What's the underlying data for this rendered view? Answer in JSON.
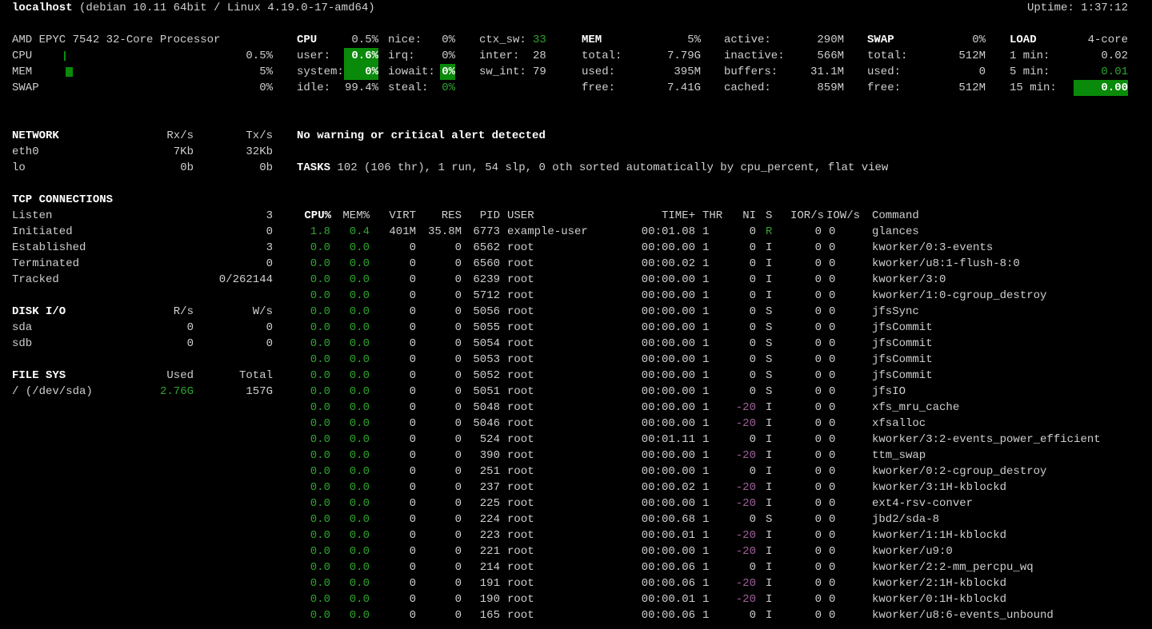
{
  "header": {
    "host": "localhost",
    "system": " (debian 10.11 64bit / Linux 4.19.0-17-amd64)",
    "uptime": "Uptime: 1:37:12"
  },
  "quicklook": {
    "cpu_name": "AMD EPYC 7542 32-Core Processor",
    "rows": [
      {
        "label": "CPU",
        "value": "0.5%",
        "percent": 0.5
      },
      {
        "label": "MEM",
        "value": "5%",
        "percent": 5
      },
      {
        "label": "SWAP",
        "value": "0%",
        "percent": 0
      }
    ]
  },
  "cpu": {
    "title": "CPU",
    "total": "0.5%",
    "user_label": "user:",
    "user": "0.6%",
    "system_label": "system:",
    "system": "0%",
    "idle_label": "idle:",
    "idle": "99.4%",
    "nice_label": "nice:",
    "nice": "0%",
    "irq_label": "irq:",
    "irq": "0%",
    "iowait_label": "iowait:",
    "iowait": "0%",
    "steal_label": "steal:",
    "steal": "0%",
    "ctx_sw_label": "ctx_sw:",
    "ctx_sw": "33",
    "inter_label": "inter:",
    "inter": "28",
    "sw_int_label": "sw_int:",
    "sw_int": "79"
  },
  "mem": {
    "title": "MEM",
    "percent": "5%",
    "total_label": "total:",
    "total": "7.79G",
    "used_label": "used:",
    "used": "395M",
    "free_label": "free:",
    "free": "7.41G",
    "active_label": "active:",
    "active": "290M",
    "inactive_label": "inactive:",
    "inactive": "566M",
    "buffers_label": "buffers:",
    "buffers": "31.1M",
    "cached_label": "cached:",
    "cached": "859M"
  },
  "swap": {
    "title": "SWAP",
    "percent": "0%",
    "total_label": "total:",
    "total": "512M",
    "used_label": "used:",
    "used": "0",
    "free_label": "free:",
    "free": "512M"
  },
  "load": {
    "title": "LOAD",
    "cores": "4-core",
    "m1_label": "1 min:",
    "m1": "0.02",
    "m5_label": "5 min:",
    "m5": "0.01",
    "m15_label": "15 min:",
    "m15": "0.00"
  },
  "network": {
    "title": "NETWORK",
    "rx": "Rx/s",
    "tx": "Tx/s",
    "rows": [
      {
        "name": "eth0",
        "rx": "7Kb",
        "tx": "32Kb"
      },
      {
        "name": "lo",
        "rx": "0b",
        "tx": "0b"
      }
    ]
  },
  "tcp": {
    "title": "TCP CONNECTIONS",
    "rows": [
      {
        "label": "Listen",
        "value": "3"
      },
      {
        "label": "Initiated",
        "value": "0"
      },
      {
        "label": "Established",
        "value": "3"
      },
      {
        "label": "Terminated",
        "value": "0"
      },
      {
        "label": "Tracked",
        "value": "0/262144"
      }
    ]
  },
  "disk": {
    "title": "DISK I/O",
    "r": "R/s",
    "w": "W/s",
    "rows": [
      {
        "name": "sda",
        "r": "0",
        "w": "0"
      },
      {
        "name": "sdb",
        "r": "0",
        "w": "0"
      }
    ]
  },
  "fs": {
    "title": "FILE SYS",
    "used": "Used",
    "total": "Total",
    "rows": [
      {
        "name": "/ (/dev/sda)",
        "used": "2.76G",
        "total": "157G"
      }
    ]
  },
  "alert": "No warning or critical alert detected",
  "tasks": {
    "label": "TASKS",
    "text": " 102 (106 thr), 1 run, 54 slp, 0 oth sorted automatically by cpu_percent, flat view"
  },
  "processes": {
    "columns": [
      "CPU%",
      "MEM%",
      "VIRT",
      "RES",
      "PID",
      "USER",
      "TIME+",
      "THR",
      "NI",
      "S",
      "IOR/s",
      "IOW/s",
      "Command"
    ],
    "rows": [
      [
        "1.8",
        "0.4",
        "401M",
        "35.8M",
        "6773",
        "example-user",
        "00:01.08",
        "1",
        "0",
        "R",
        "0",
        "0",
        "glances"
      ],
      [
        "0.0",
        "0.0",
        "0",
        "0",
        "6562",
        "root",
        "00:00.00",
        "1",
        "0",
        "I",
        "0",
        "0",
        "kworker/0:3-events"
      ],
      [
        "0.0",
        "0.0",
        "0",
        "0",
        "6560",
        "root",
        "00:00.02",
        "1",
        "0",
        "I",
        "0",
        "0",
        "kworker/u8:1-flush-8:0"
      ],
      [
        "0.0",
        "0.0",
        "0",
        "0",
        "6239",
        "root",
        "00:00.00",
        "1",
        "0",
        "I",
        "0",
        "0",
        "kworker/3:0"
      ],
      [
        "0.0",
        "0.0",
        "0",
        "0",
        "5712",
        "root",
        "00:00.00",
        "1",
        "0",
        "I",
        "0",
        "0",
        "kworker/1:0-cgroup_destroy"
      ],
      [
        "0.0",
        "0.0",
        "0",
        "0",
        "5056",
        "root",
        "00:00.00",
        "1",
        "0",
        "S",
        "0",
        "0",
        "jfsSync"
      ],
      [
        "0.0",
        "0.0",
        "0",
        "0",
        "5055",
        "root",
        "00:00.00",
        "1",
        "0",
        "S",
        "0",
        "0",
        "jfsCommit"
      ],
      [
        "0.0",
        "0.0",
        "0",
        "0",
        "5054",
        "root",
        "00:00.00",
        "1",
        "0",
        "S",
        "0",
        "0",
        "jfsCommit"
      ],
      [
        "0.0",
        "0.0",
        "0",
        "0",
        "5053",
        "root",
        "00:00.00",
        "1",
        "0",
        "S",
        "0",
        "0",
        "jfsCommit"
      ],
      [
        "0.0",
        "0.0",
        "0",
        "0",
        "5052",
        "root",
        "00:00.00",
        "1",
        "0",
        "S",
        "0",
        "0",
        "jfsCommit"
      ],
      [
        "0.0",
        "0.0",
        "0",
        "0",
        "5051",
        "root",
        "00:00.00",
        "1",
        "0",
        "S",
        "0",
        "0",
        "jfsIO"
      ],
      [
        "0.0",
        "0.0",
        "0",
        "0",
        "5048",
        "root",
        "00:00.00",
        "1",
        "-20",
        "I",
        "0",
        "0",
        "xfs_mru_cache"
      ],
      [
        "0.0",
        "0.0",
        "0",
        "0",
        "5046",
        "root",
        "00:00.00",
        "1",
        "-20",
        "I",
        "0",
        "0",
        "xfsalloc"
      ],
      [
        "0.0",
        "0.0",
        "0",
        "0",
        "524",
        "root",
        "00:01.11",
        "1",
        "0",
        "I",
        "0",
        "0",
        "kworker/3:2-events_power_efficient"
      ],
      [
        "0.0",
        "0.0",
        "0",
        "0",
        "390",
        "root",
        "00:00.00",
        "1",
        "-20",
        "I",
        "0",
        "0",
        "ttm_swap"
      ],
      [
        "0.0",
        "0.0",
        "0",
        "0",
        "251",
        "root",
        "00:00.00",
        "1",
        "0",
        "I",
        "0",
        "0",
        "kworker/0:2-cgroup_destroy"
      ],
      [
        "0.0",
        "0.0",
        "0",
        "0",
        "237",
        "root",
        "00:00.02",
        "1",
        "-20",
        "I",
        "0",
        "0",
        "kworker/3:1H-kblockd"
      ],
      [
        "0.0",
        "0.0",
        "0",
        "0",
        "225",
        "root",
        "00:00.00",
        "1",
        "-20",
        "I",
        "0",
        "0",
        "ext4-rsv-conver"
      ],
      [
        "0.0",
        "0.0",
        "0",
        "0",
        "224",
        "root",
        "00:00.68",
        "1",
        "0",
        "S",
        "0",
        "0",
        "jbd2/sda-8"
      ],
      [
        "0.0",
        "0.0",
        "0",
        "0",
        "223",
        "root",
        "00:00.01",
        "1",
        "-20",
        "I",
        "0",
        "0",
        "kworker/1:1H-kblockd"
      ],
      [
        "0.0",
        "0.0",
        "0",
        "0",
        "221",
        "root",
        "00:00.00",
        "1",
        "-20",
        "I",
        "0",
        "0",
        "kworker/u9:0"
      ],
      [
        "0.0",
        "0.0",
        "0",
        "0",
        "214",
        "root",
        "00:00.06",
        "1",
        "0",
        "I",
        "0",
        "0",
        "kworker/2:2-mm_percpu_wq"
      ],
      [
        "0.0",
        "0.0",
        "0",
        "0",
        "191",
        "root",
        "00:00.06",
        "1",
        "-20",
        "I",
        "0",
        "0",
        "kworker/2:1H-kblockd"
      ],
      [
        "0.0",
        "0.0",
        "0",
        "0",
        "190",
        "root",
        "00:00.01",
        "1",
        "-20",
        "I",
        "0",
        "0",
        "kworker/0:1H-kblockd"
      ],
      [
        "0.0",
        "0.0",
        "0",
        "0",
        "165",
        "root",
        "00:00.06",
        "1",
        "0",
        "I",
        "0",
        "0",
        "kworker/u8:6-events_unbound"
      ]
    ]
  },
  "colors": {
    "ok": "#2ea52e",
    "highlight_bg": "#0a8a0a",
    "nice_negative": "#a0609a",
    "text": "#cfcfcf",
    "background": "#000000"
  }
}
